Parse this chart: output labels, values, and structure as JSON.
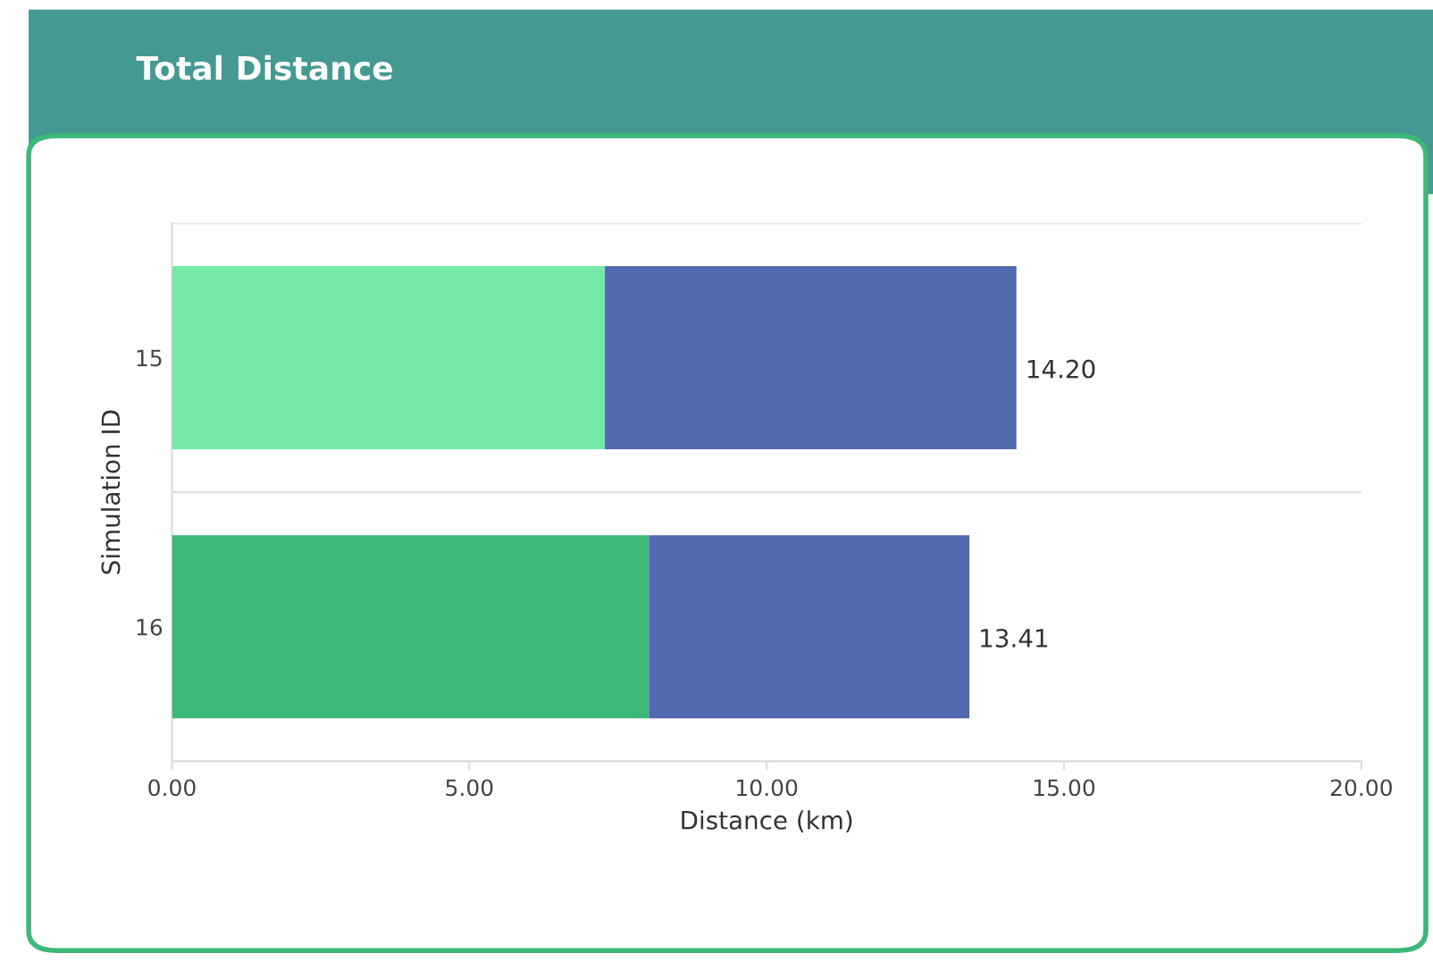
{
  "chart_data": {
    "type": "bar",
    "orientation": "horizontal",
    "stacked": true,
    "title": "Total Distance",
    "xlabel": "Distance (km)",
    "ylabel": "Simulation ID",
    "categories": [
      "15",
      "16"
    ],
    "series": [
      {
        "colors": [
          "#74e8a6",
          "#3cb878"
        ],
        "values": [
          7.28,
          8.02
        ]
      },
      {
        "color": "#5069b0",
        "values": [
          6.92,
          5.39
        ]
      }
    ],
    "totals": [
      "14.20",
      "13.41"
    ],
    "xlim": [
      0,
      20
    ],
    "xticks": [
      {
        "value": 0,
        "label": "0.00"
      },
      {
        "value": 5,
        "label": "5.00"
      },
      {
        "value": 10,
        "label": "10.00"
      },
      {
        "value": 15,
        "label": "15.00"
      },
      {
        "value": 20,
        "label": "20.00"
      }
    ],
    "grid": "y",
    "legend": false
  }
}
